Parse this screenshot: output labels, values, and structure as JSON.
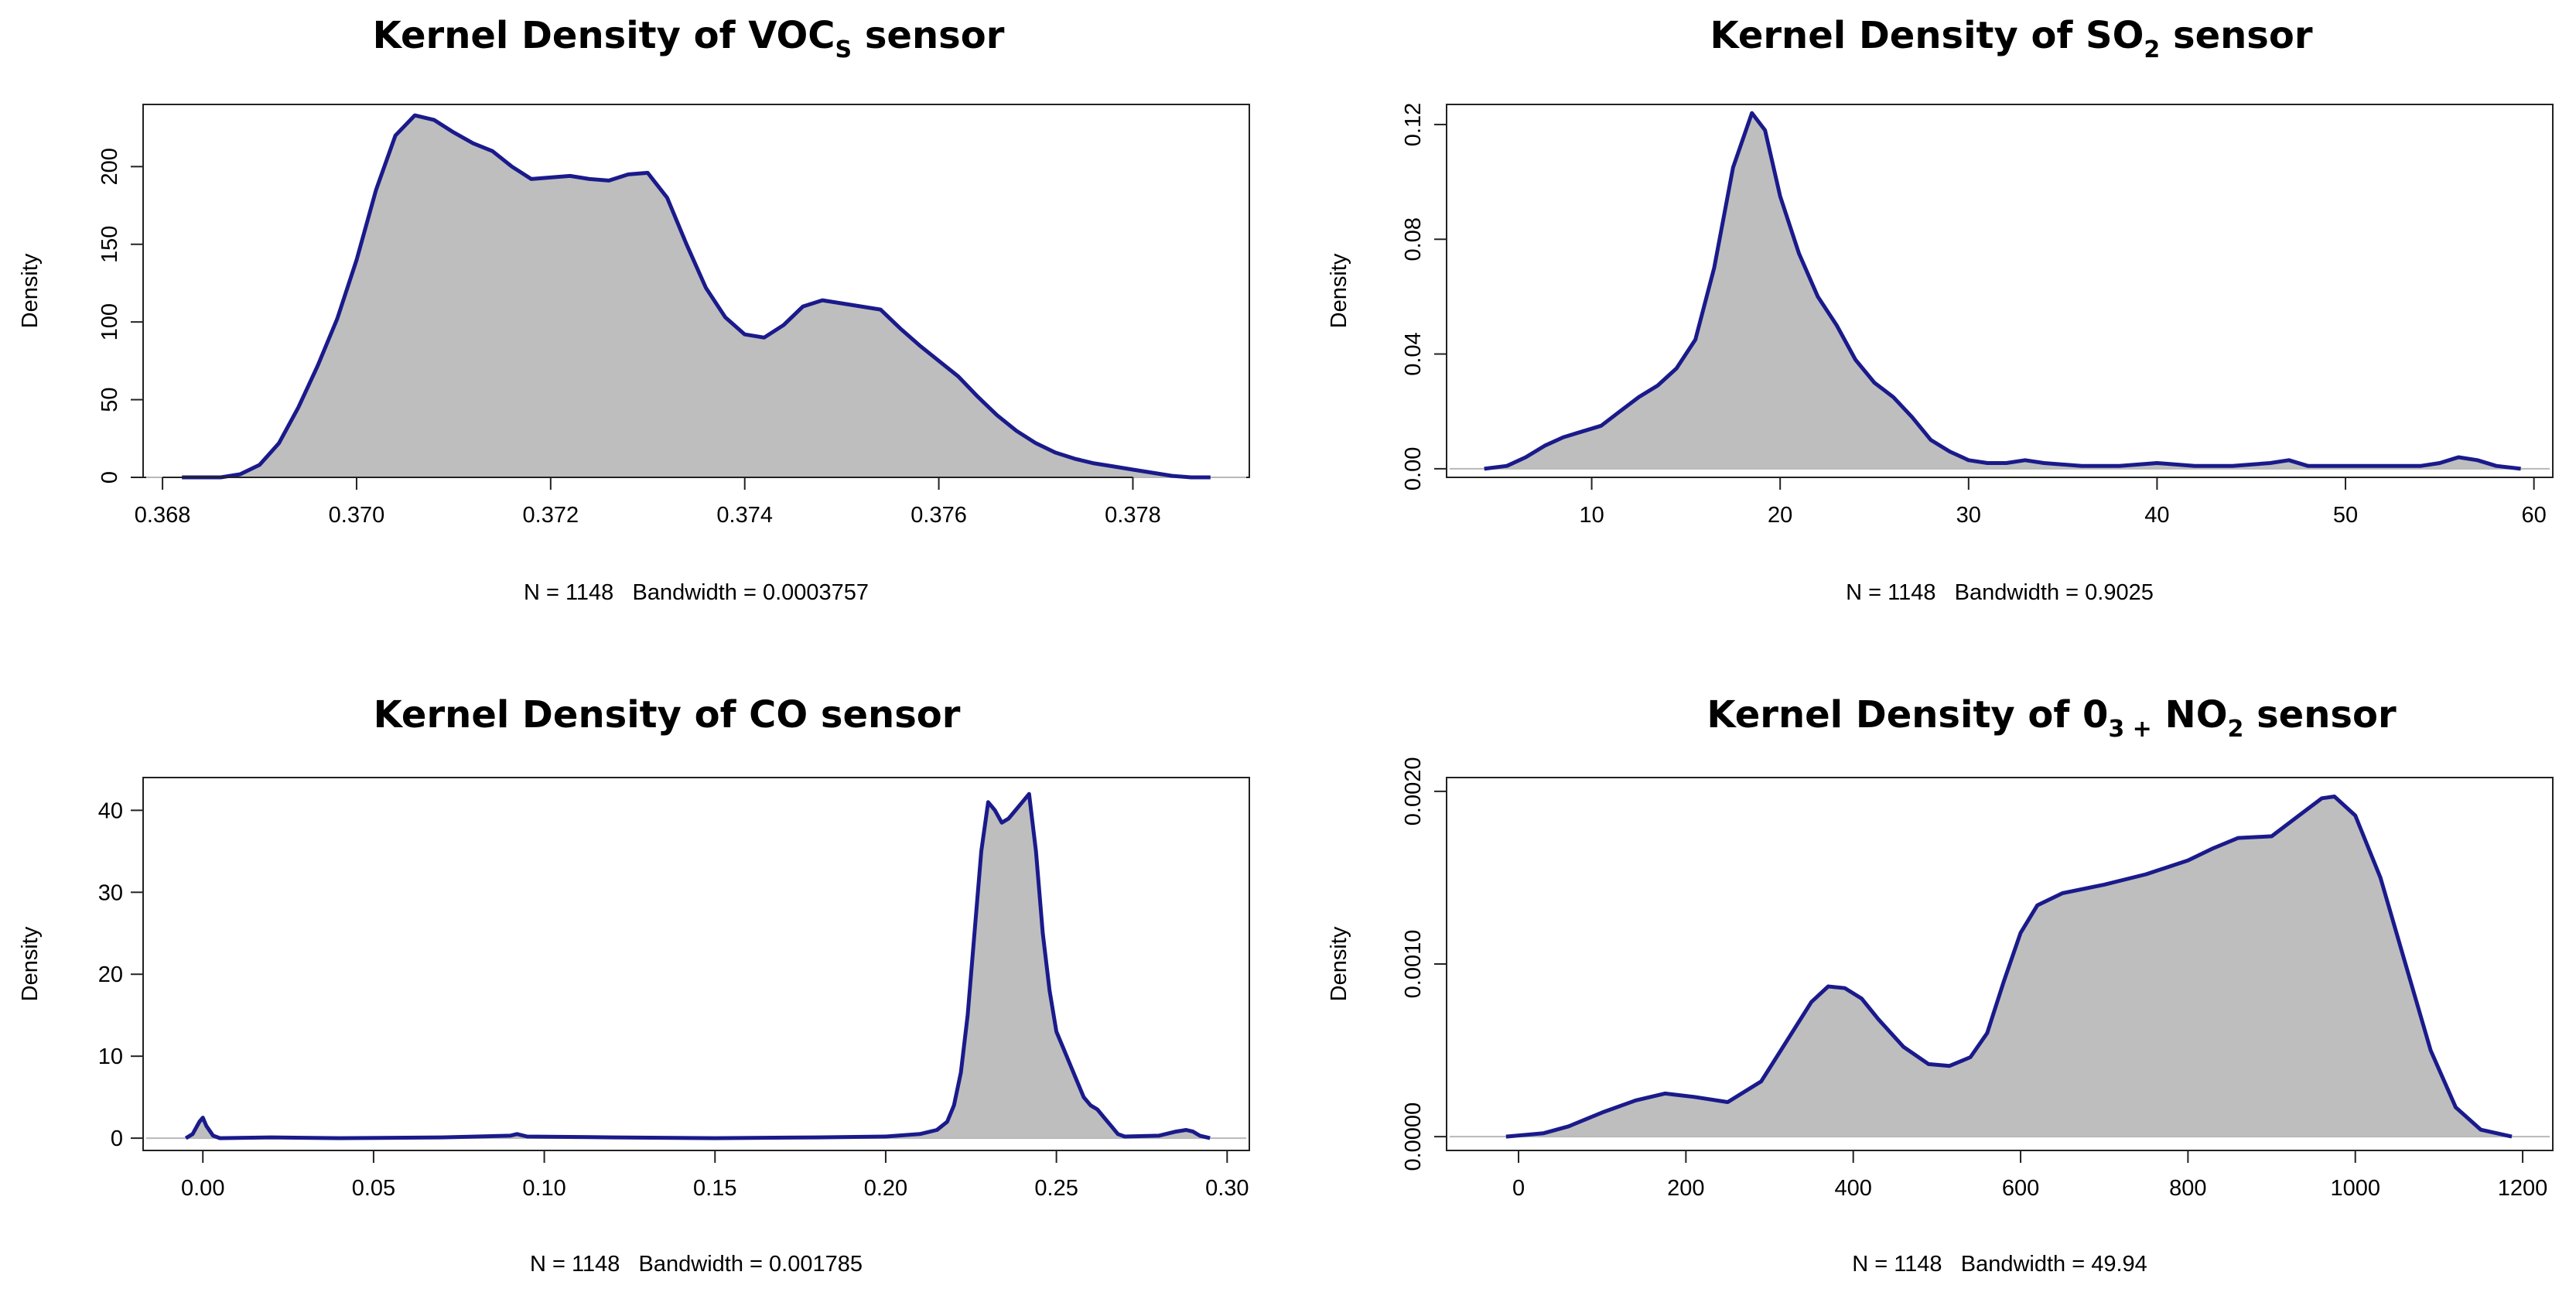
{
  "chart_data": [
    {
      "type": "area",
      "title": "Kernel Density of VOC",
      "title_subscript": "S",
      "title_suffix": " sensor",
      "xlabel": "N = 1148   Bandwidth = 0.0003757",
      "ylabel": "Density",
      "xlim": [
        0.3678,
        0.3792
      ],
      "ylim": [
        0,
        240
      ],
      "x_ticks": [
        0.368,
        0.37,
        0.372,
        0.374,
        0.376,
        0.378
      ],
      "x_tick_labels": [
        "0.368",
        "0.370",
        "0.372",
        "0.374",
        "0.376",
        "0.378"
      ],
      "y_ticks": [
        0,
        50,
        100,
        150,
        200
      ],
      "y_tick_labels": [
        "0",
        "50",
        "100",
        "150",
        "200"
      ],
      "y_tick_rotated": true,
      "x": [
        0.3682,
        0.3686,
        0.3688,
        0.369,
        0.3692,
        0.3694,
        0.3696,
        0.3698,
        0.37,
        0.3702,
        0.3704,
        0.3706,
        0.3708,
        0.371,
        0.3712,
        0.3714,
        0.3716,
        0.3718,
        0.372,
        0.3722,
        0.3724,
        0.3726,
        0.3728,
        0.373,
        0.3732,
        0.3734,
        0.3736,
        0.3738,
        0.374,
        0.3742,
        0.3744,
        0.3746,
        0.3748,
        0.375,
        0.3752,
        0.3754,
        0.3756,
        0.3758,
        0.376,
        0.3762,
        0.3764,
        0.3766,
        0.3768,
        0.377,
        0.3772,
        0.3774,
        0.3776,
        0.3778,
        0.378,
        0.3782,
        0.3784,
        0.3786,
        0.3788
      ],
      "y": [
        0,
        0,
        2,
        8,
        22,
        45,
        72,
        102,
        140,
        185,
        220,
        233,
        230,
        222,
        215,
        210,
        200,
        192,
        193,
        194,
        192,
        191,
        195,
        196,
        180,
        150,
        122,
        103,
        92,
        90,
        98,
        110,
        114,
        112,
        110,
        108,
        96,
        85,
        75,
        65,
        52,
        40,
        30,
        22,
        16,
        12,
        9,
        7,
        5,
        3,
        1,
        0,
        0
      ]
    },
    {
      "type": "area",
      "title": "Kernel Density of SO",
      "title_subscript": "2",
      "title_suffix": " sensor",
      "xlabel": "N = 1148   Bandwidth = 0.9025",
      "ylabel": "Density",
      "xlim": [
        2.3,
        61
      ],
      "ylim": [
        -0.003,
        0.127
      ],
      "x_ticks": [
        10,
        20,
        30,
        40,
        50,
        60
      ],
      "x_tick_labels": [
        "10",
        "20",
        "30",
        "40",
        "50",
        "60"
      ],
      "y_ticks": [
        0,
        0.04,
        0.08,
        0.12
      ],
      "y_tick_labels": [
        "0.00",
        "0.04",
        "0.08",
        "0.12"
      ],
      "y_tick_rotated": true,
      "x": [
        4.3,
        5.5,
        6.5,
        7.5,
        8.5,
        9.5,
        10.5,
        11.5,
        12.5,
        13.5,
        14.5,
        15.5,
        16.5,
        17.5,
        18.5,
        19.2,
        20,
        21,
        22,
        23,
        24,
        25,
        26,
        27,
        28,
        29,
        30,
        31,
        32,
        33,
        34,
        36,
        38,
        40,
        42,
        44,
        46,
        47,
        48,
        50,
        52,
        54,
        55,
        56,
        57,
        58,
        59.3
      ],
      "y": [
        0,
        0.001,
        0.004,
        0.008,
        0.011,
        0.013,
        0.015,
        0.02,
        0.025,
        0.029,
        0.035,
        0.045,
        0.07,
        0.105,
        0.124,
        0.118,
        0.095,
        0.075,
        0.06,
        0.05,
        0.038,
        0.03,
        0.025,
        0.018,
        0.01,
        0.006,
        0.003,
        0.002,
        0.002,
        0.003,
        0.002,
        0.001,
        0.001,
        0.002,
        0.001,
        0.001,
        0.002,
        0.003,
        0.001,
        0.001,
        0.001,
        0.001,
        0.002,
        0.004,
        0.003,
        0.001,
        0
      ]
    },
    {
      "type": "area",
      "title": "Kernel Density of CO sensor",
      "title_subscript": "",
      "title_suffix": "",
      "xlabel": "N = 1148   Bandwidth = 0.001785",
      "ylabel": "Density",
      "xlim": [
        -0.0175,
        0.3065
      ],
      "ylim": [
        -1.5,
        44
      ],
      "x_ticks": [
        0,
        0.05,
        0.1,
        0.15,
        0.2,
        0.25,
        0.3
      ],
      "x_tick_labels": [
        "0.00",
        "0.05",
        "0.10",
        "0.15",
        "0.20",
        "0.25",
        "0.30"
      ],
      "y_ticks": [
        0,
        10,
        20,
        30,
        40
      ],
      "y_tick_labels": [
        "0",
        "10",
        "20",
        "30",
        "40"
      ],
      "y_tick_rotated": false,
      "x": [
        -0.005,
        -0.003,
        -0.001,
        0.0,
        0.001,
        0.003,
        0.005,
        0.02,
        0.04,
        0.07,
        0.09,
        0.092,
        0.095,
        0.12,
        0.15,
        0.18,
        0.2,
        0.21,
        0.215,
        0.218,
        0.22,
        0.222,
        0.224,
        0.226,
        0.228,
        0.23,
        0.232,
        0.234,
        0.236,
        0.238,
        0.24,
        0.242,
        0.244,
        0.246,
        0.248,
        0.25,
        0.252,
        0.254,
        0.256,
        0.258,
        0.26,
        0.262,
        0.264,
        0.266,
        0.268,
        0.27,
        0.28,
        0.285,
        0.288,
        0.29,
        0.292,
        0.295
      ],
      "y": [
        0,
        0.5,
        2,
        2.5,
        1.5,
        0.3,
        0,
        0.1,
        0,
        0.1,
        0.3,
        0.5,
        0.2,
        0.1,
        0,
        0.1,
        0.2,
        0.5,
        1,
        2,
        4,
        8,
        15,
        25,
        35,
        41,
        40,
        38.5,
        39,
        40,
        41,
        42,
        35,
        25,
        18,
        13,
        11,
        9,
        7,
        5,
        4,
        3.5,
        2.5,
        1.5,
        0.5,
        0.2,
        0.3,
        0.8,
        1,
        0.8,
        0.3,
        0
      ]
    },
    {
      "type": "area",
      "title": "Kernel Density of 0",
      "title_subscript": "3 +",
      "title_suffix": " NO",
      "title_subscript_2": "2",
      "title_suffix_2": " sensor",
      "xlabel": "N = 1148   Bandwidth = 49.94",
      "ylabel": "Density",
      "xlim": [
        -86,
        1236
      ],
      "ylim": [
        -8e-05,
        0.00208
      ],
      "x_ticks": [
        0,
        200,
        400,
        600,
        800,
        1000,
        1200
      ],
      "x_tick_labels": [
        "0",
        "200",
        "400",
        "600",
        "800",
        "1000",
        "1200"
      ],
      "y_ticks": [
        0,
        0.001,
        0.002
      ],
      "y_tick_labels": [
        "0.0000",
        "0.0010",
        "0.0020"
      ],
      "y_tick_rotated": true,
      "x": [
        -15,
        30,
        60,
        100,
        140,
        175,
        210,
        250,
        290,
        320,
        350,
        370,
        390,
        410,
        430,
        460,
        490,
        515,
        540,
        560,
        580,
        600,
        620,
        650,
        700,
        750,
        800,
        830,
        860,
        900,
        930,
        960,
        975,
        1000,
        1030,
        1060,
        1090,
        1120,
        1150,
        1187
      ],
      "y": [
        0,
        2e-05,
        6e-05,
        0.00014,
        0.00021,
        0.00025,
        0.00023,
        0.0002,
        0.00032,
        0.00055,
        0.00078,
        0.00087,
        0.00086,
        0.0008,
        0.00068,
        0.00052,
        0.00042,
        0.00041,
        0.00046,
        0.0006,
        0.0009,
        0.00118,
        0.00134,
        0.00141,
        0.00146,
        0.00152,
        0.0016,
        0.00167,
        0.00173,
        0.00174,
        0.00185,
        0.00196,
        0.00197,
        0.00186,
        0.0015,
        0.001,
        0.0005,
        0.00017,
        4e-05,
        0
      ]
    }
  ]
}
